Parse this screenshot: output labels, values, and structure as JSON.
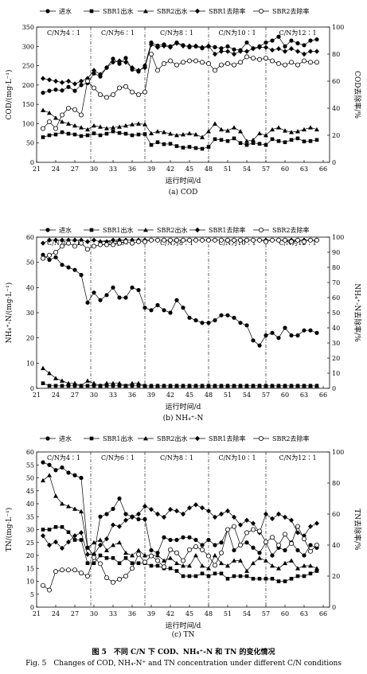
{
  "figure": {
    "caption_cn": "图 5　不同 C/N 下 COD、NH₄⁺-N 和 TN 的变化情况",
    "caption_en": "Fig. 5　Changes of COD, NH₄-N⁺ and TN concentration under different C/N conditions"
  },
  "chart_data": [
    {
      "type": "line",
      "panel": "(a) COD",
      "xlabel": "运行时间/d",
      "ylabel": "COD/(mg·L⁻¹)",
      "y2label": "COD去除率/%",
      "xlim": [
        21,
        67
      ],
      "ylim": [
        0,
        350
      ],
      "y2lim": [
        0,
        100
      ],
      "xticks": [
        21,
        24,
        27,
        30,
        33,
        36,
        39,
        42,
        45,
        48,
        51,
        54,
        57,
        60,
        63,
        66
      ],
      "yticks": [
        0,
        50,
        100,
        150,
        200,
        250,
        300,
        350
      ],
      "y2ticks": [
        0,
        20,
        40,
        60,
        80,
        100
      ],
      "legend": [
        "进水",
        "SBR1出水",
        "SBR2出水",
        "SBR1去除率",
        "SBR2去除率"
      ],
      "phases": [
        {
          "label": "C/N为4∶1",
          "x": [
            21,
            29.5
          ]
        },
        {
          "label": "C/N为6∶1",
          "x": [
            29.5,
            38
          ]
        },
        {
          "label": "C/N为8∶1",
          "x": [
            38,
            48
          ]
        },
        {
          "label": "C/N为10∶1",
          "x": [
            48,
            57
          ]
        },
        {
          "label": "C/N为12∶1",
          "x": [
            57,
            67
          ]
        }
      ],
      "x": [
        22,
        23,
        24,
        25,
        26,
        27,
        28,
        29,
        30,
        31,
        32,
        33,
        34,
        35,
        36,
        37,
        38,
        39,
        40,
        41,
        42,
        43,
        44,
        45,
        46,
        47,
        48,
        49,
        50,
        51,
        52,
        53,
        54,
        55,
        56,
        57,
        58,
        59,
        60,
        61,
        62,
        63,
        64,
        65
      ],
      "series": [
        {
          "name": "进水",
          "axis": "left",
          "marker": "filled-circle",
          "values": [
            180,
            185,
            188,
            186,
            195,
            185,
            200,
            205,
            230,
            222,
            245,
            268,
            255,
            270,
            240,
            235,
            250,
            310,
            302,
            305,
            300,
            310,
            303,
            298,
            300,
            295,
            300,
            298,
            295,
            300,
            292,
            290,
            310,
            295,
            300,
            310,
            315,
            325,
            300,
            315,
            308,
            303,
            315,
            318
          ]
        },
        {
          "name": "SBR1出水",
          "axis": "left",
          "marker": "filled-square",
          "values": [
            65,
            70,
            72,
            78,
            74,
            72,
            68,
            70,
            75,
            70,
            74,
            80,
            76,
            74,
            70,
            72,
            73,
            45,
            52,
            47,
            48,
            42,
            38,
            40,
            37,
            35,
            40,
            60,
            58,
            55,
            62,
            50,
            45,
            50,
            48,
            45,
            60,
            55,
            52,
            58,
            62,
            54,
            55,
            58
          ]
        },
        {
          "name": "SBR2出水",
          "axis": "left",
          "marker": "filled-triangle",
          "values": [
            135,
            128,
            115,
            105,
            100,
            95,
            90,
            85,
            95,
            92,
            88,
            90,
            92,
            95,
            98,
            100,
            98,
            75,
            80,
            78,
            74,
            70,
            72,
            75,
            72,
            65,
            80,
            100,
            85,
            82,
            90,
            80,
            55,
            58,
            75,
            70,
            85,
            90,
            82,
            78,
            80,
            85,
            90,
            85
          ]
        },
        {
          "name": "SBR1去除率",
          "axis": "right",
          "marker": "filled-diamond",
          "values": [
            62,
            61,
            60,
            59,
            60,
            58,
            60,
            62,
            68,
            65,
            70,
            74,
            75,
            74,
            70,
            68,
            70,
            87,
            85,
            86,
            85,
            88,
            86,
            86,
            86,
            85,
            86,
            80,
            82,
            82,
            80,
            82,
            82,
            84,
            85,
            85,
            83,
            84,
            82,
            84,
            82,
            80,
            82,
            82
          ]
        },
        {
          "name": "SBR2去除率",
          "axis": "right",
          "marker": "open-circle",
          "values": [
            25,
            30,
            25,
            35,
            40,
            39,
            35,
            60,
            55,
            50,
            48,
            50,
            55,
            56,
            52,
            50,
            52,
            80,
            68,
            73,
            75,
            72,
            74,
            75,
            75,
            74,
            73,
            68,
            72,
            73,
            72,
            74,
            78,
            77,
            76,
            77,
            75,
            73,
            72,
            74,
            72,
            75,
            74,
            74
          ]
        }
      ]
    },
    {
      "type": "line",
      "panel": "(b) NH₄⁺-N",
      "xlabel": "运行时间/d",
      "ylabel": "NH₄⁺-N/(mg·L⁻¹)",
      "y2label": "NH₄⁺-N去除率/%",
      "xlim": [
        21,
        67
      ],
      "ylim": [
        0,
        60
      ],
      "y2lim": [
        0,
        100
      ],
      "xticks": [
        21,
        24,
        27,
        30,
        33,
        36,
        39,
        42,
        45,
        48,
        51,
        54,
        57,
        60,
        63,
        66
      ],
      "yticks": [
        0,
        10,
        20,
        30,
        40,
        50,
        60
      ],
      "y2ticks": [
        0,
        10,
        20,
        30,
        40,
        50,
        60,
        70,
        80,
        90,
        100
      ],
      "legend": [
        "进水",
        "SBR1出水",
        "SBR2出水",
        "SBR1去除率",
        "SBR2去除率"
      ],
      "phases": [
        {
          "label": "C/N为4∶1",
          "x": [
            21,
            29.5
          ]
        },
        {
          "label": "C/N为6∶1",
          "x": [
            29.5,
            38
          ]
        },
        {
          "label": "C/N为8∶1",
          "x": [
            38,
            48
          ]
        },
        {
          "label": "C/N为10∶1",
          "x": [
            48,
            57
          ]
        },
        {
          "label": "C/N为12∶1",
          "x": [
            57,
            67
          ]
        }
      ],
      "x": [
        22,
        23,
        24,
        25,
        26,
        27,
        28,
        29,
        30,
        31,
        32,
        33,
        34,
        35,
        36,
        37,
        38,
        39,
        40,
        41,
        42,
        43,
        44,
        45,
        46,
        47,
        48,
        49,
        50,
        51,
        52,
        53,
        54,
        55,
        56,
        57,
        58,
        59,
        60,
        61,
        62,
        63,
        64,
        65
      ],
      "series": [
        {
          "name": "进水",
          "axis": "left",
          "marker": "filled-circle",
          "values": [
            53,
            51,
            52,
            49,
            48,
            47,
            45,
            34,
            38,
            35,
            37,
            40,
            36,
            36,
            40,
            39,
            32,
            31,
            33,
            31,
            30,
            35,
            32,
            28,
            27,
            26,
            26,
            27,
            29,
            29,
            28,
            26,
            25,
            19,
            17,
            21,
            22,
            20,
            24,
            21,
            21,
            23,
            23,
            22
          ]
        },
        {
          "name": "SBR1出水",
          "axis": "left",
          "marker": "filled-square",
          "values": [
            2,
            1,
            1,
            1,
            1,
            1,
            1,
            1,
            1,
            1,
            1,
            1,
            1,
            1,
            1,
            1,
            1,
            1,
            1,
            1,
            1,
            1,
            1,
            1,
            1,
            1,
            1,
            1,
            1,
            1,
            1,
            1,
            1,
            1,
            1,
            1,
            1,
            1,
            1,
            1,
            1,
            1,
            1,
            1
          ]
        },
        {
          "name": "SBR2出水",
          "axis": "left",
          "marker": "filled-triangle",
          "values": [
            8,
            6,
            4,
            3,
            2,
            2,
            1,
            3,
            2,
            1,
            2,
            2,
            2,
            1,
            2,
            2,
            1,
            1,
            1,
            1,
            1,
            1,
            1,
            1,
            1,
            1,
            1,
            1,
            1,
            1,
            1,
            1,
            1,
            1,
            1,
            1,
            1,
            1,
            1,
            1,
            1,
            1,
            1,
            1
          ]
        },
        {
          "name": "SBR1去除率",
          "axis": "right",
          "marker": "filled-diamond",
          "values": [
            96,
            98,
            98,
            98,
            98,
            98,
            98,
            97,
            98,
            97,
            97,
            98,
            98,
            98,
            98,
            98,
            98,
            98,
            98,
            98,
            98,
            98,
            98,
            98,
            98,
            98,
            98,
            98,
            98,
            98,
            98,
            98,
            98,
            98,
            98,
            98,
            98,
            98,
            98,
            98,
            98,
            98,
            98,
            98
          ]
        },
        {
          "name": "SBR2去除率",
          "axis": "right",
          "marker": "open-circle",
          "values": [
            86,
            88,
            90,
            94,
            96,
            94,
            96,
            92,
            94,
            95,
            95,
            95,
            96,
            97,
            96,
            97,
            97,
            98,
            98,
            98,
            98,
            98,
            98,
            98,
            98,
            98,
            98,
            98,
            98,
            98,
            98,
            98,
            98,
            98,
            98,
            97,
            98,
            98,
            98,
            97,
            98,
            97,
            98,
            98
          ]
        }
      ]
    },
    {
      "type": "line",
      "panel": "(c) TN",
      "xlabel": "运行时间/d",
      "ylabel": "TN/(mg·L⁻¹)",
      "y2label": "TN去除率/%",
      "xlim": [
        21,
        67
      ],
      "ylim": [
        0,
        60
      ],
      "y2lim": [
        0,
        100
      ],
      "xticks": [
        21,
        24,
        27,
        30,
        33,
        36,
        39,
        42,
        45,
        48,
        51,
        54,
        57,
        60,
        63,
        66
      ],
      "yticks": [
        0,
        5,
        10,
        15,
        20,
        25,
        30,
        35,
        40,
        45,
        50,
        55,
        60
      ],
      "y2ticks": [
        0,
        20,
        40,
        60,
        80,
        100
      ],
      "legend": [
        "进水",
        "SBR1出水",
        "SBR2出水",
        "SBR1去除率",
        "SBR2去除率"
      ],
      "phases": [
        {
          "label": "C/N为4∶1",
          "x": [
            21,
            29.5
          ]
        },
        {
          "label": "C/N为6∶1",
          "x": [
            29.5,
            38
          ]
        },
        {
          "label": "C/N为8∶1",
          "x": [
            38,
            48
          ]
        },
        {
          "label": "C/N为10∶1",
          "x": [
            48,
            57
          ]
        },
        {
          "label": "C/N为12∶1",
          "x": [
            57,
            67
          ]
        }
      ],
      "x": [
        22,
        23,
        24,
        25,
        26,
        27,
        28,
        29,
        30,
        31,
        32,
        33,
        34,
        35,
        36,
        37,
        38,
        39,
        40,
        41,
        42,
        43,
        44,
        45,
        46,
        47,
        48,
        49,
        50,
        51,
        52,
        53,
        54,
        55,
        56,
        57,
        58,
        59,
        60,
        61,
        62,
        63,
        64,
        65
      ],
      "series": [
        {
          "name": "进水",
          "axis": "left",
          "marker": "filled-circle",
          "values": [
            56,
            55,
            53,
            54,
            52,
            51,
            50,
            23,
            20,
            35,
            36,
            38,
            42,
            36,
            35,
            34,
            34,
            22,
            21,
            27,
            26,
            26,
            27,
            27,
            26,
            24,
            26,
            24,
            25,
            30,
            22,
            24,
            25,
            23,
            21,
            25,
            20,
            23,
            22,
            25,
            22,
            20,
            24,
            23
          ]
        },
        {
          "name": "SBR1出水",
          "axis": "left",
          "marker": "filled-square",
          "values": [
            30,
            30,
            31,
            31,
            29,
            26,
            26,
            17,
            17,
            20,
            19,
            19,
            17,
            19,
            17,
            17,
            17,
            16,
            16,
            15,
            15,
            14,
            12,
            12,
            12,
            13,
            12,
            13,
            13,
            11,
            12,
            12,
            12,
            11,
            11,
            11,
            11,
            10,
            10,
            11,
            12,
            12,
            13,
            14
          ]
        },
        {
          "name": "SBR2出水",
          "axis": "left",
          "marker": "filled-triangle",
          "values": [
            49,
            51,
            43,
            40,
            39,
            38,
            37,
            23,
            25,
            26,
            22,
            24,
            25,
            21,
            20,
            22,
            20,
            20,
            20,
            18,
            19,
            17,
            16,
            16,
            20,
            16,
            15,
            20,
            17,
            16,
            18,
            18,
            14,
            17,
            19,
            18,
            16,
            15,
            17,
            18,
            15,
            16,
            16,
            15
          ]
        },
        {
          "name": "SBR1去除率",
          "axis": "right",
          "marker": "filled-diamond",
          "values": [
            46,
            40,
            42,
            38,
            42,
            46,
            48,
            34,
            34,
            40,
            44,
            53,
            52,
            56,
            58,
            60,
            65,
            63,
            60,
            58,
            63,
            62,
            60,
            64,
            66,
            64,
            62,
            58,
            60,
            62,
            58,
            53,
            56,
            54,
            48,
            60,
            57,
            60,
            58,
            56,
            48,
            46,
            52,
            54
          ]
        },
        {
          "name": "SBR2去除率",
          "axis": "right",
          "marker": "open-circle",
          "values": [
            14,
            11,
            23,
            24,
            24,
            24,
            22,
            20,
            32,
            28,
            19,
            16,
            18,
            20,
            25,
            34,
            29,
            33,
            30,
            26,
            37,
            35,
            30,
            37,
            39,
            37,
            33,
            27,
            35,
            50,
            52,
            40,
            48,
            50,
            49,
            42,
            45,
            40,
            47,
            41,
            52,
            44,
            36,
            40
          ]
        }
      ]
    }
  ]
}
